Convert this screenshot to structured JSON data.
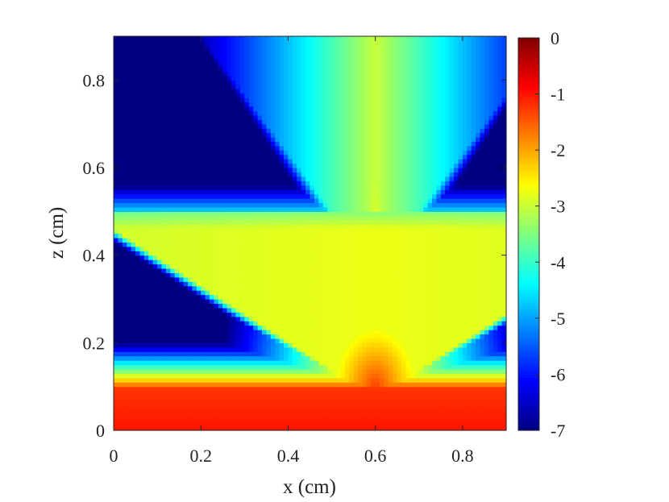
{
  "chart_data": {
    "type": "heatmap",
    "title": "",
    "xlabel": "x (cm)",
    "ylabel": "z (cm)",
    "xlim": [
      0,
      0.9
    ],
    "ylim": [
      0,
      0.9
    ],
    "xticks": [
      0,
      0.2,
      0.4,
      0.6,
      0.8
    ],
    "xtick_labels": [
      "0",
      "0.2",
      "0.4",
      "0.6",
      "0.8"
    ],
    "yticks": [
      0,
      0.2,
      0.4,
      0.6,
      0.8
    ],
    "ytick_labels": [
      "0",
      "0.2",
      "0.4",
      "0.6",
      "0.8"
    ],
    "colorbar": {
      "range": [
        -7,
        0
      ],
      "ticks": [
        0,
        -1,
        -2,
        -3,
        -4,
        -5,
        -6,
        -7
      ],
      "tick_labels": [
        "0",
        "-1",
        "-2",
        "-3",
        "-4",
        "-5",
        "-6",
        "-7"
      ],
      "colormap": "jet"
    },
    "field": {
      "grid_resolution": 90,
      "layers": [
        {
          "z_range": [
            0.0,
            0.1
          ],
          "value": -1.0
        },
        {
          "z_range": [
            0.1,
            0.5
          ],
          "value": -3.0,
          "source_x": 0.6
        },
        {
          "z_range": [
            0.5,
            0.9
          ],
          "value": -4.0,
          "center_x": 0.6
        }
      ],
      "background_value": -7.0,
      "peak_value": -1.3,
      "peak_location": [
        0.6,
        0.1
      ]
    },
    "grid": false
  }
}
